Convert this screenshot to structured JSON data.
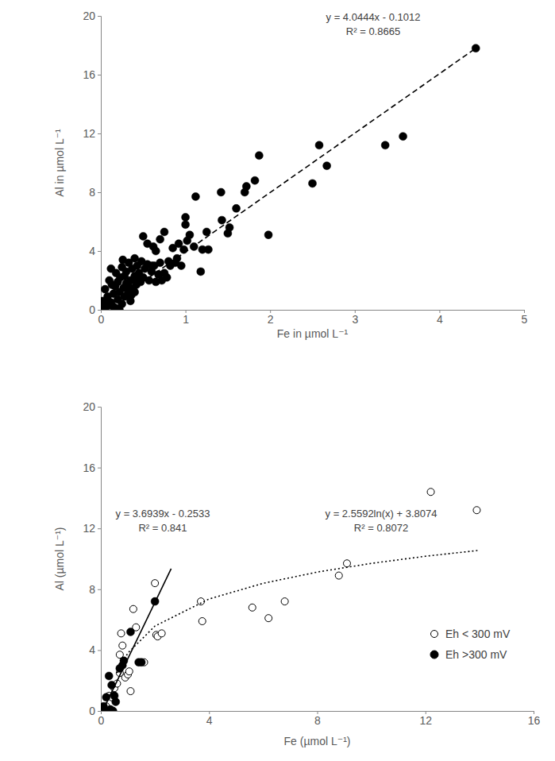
{
  "chart_data": [
    {
      "type": "scatter",
      "x_label": "Fe in µmol L⁻¹",
      "y_label": "Al in µmol L⁻¹",
      "xlim": [
        0,
        5
      ],
      "xticks": [
        0,
        1,
        2,
        3,
        4,
        5
      ],
      "ylim": [
        0,
        20
      ],
      "yticks": [
        0,
        4,
        8,
        12,
        16,
        20
      ],
      "grid": false,
      "annotations": [
        "y = 4.0444x - 0.1012",
        "R² = 0.8665"
      ],
      "series": [
        {
          "color": "#000000",
          "marker": "circle",
          "x": [
            0.02,
            0.03,
            0.05,
            0.05,
            0.08,
            0.1,
            0.1,
            0.12,
            0.12,
            0.15,
            0.15,
            0.17,
            0.18,
            0.2,
            0.2,
            0.22,
            0.23,
            0.25,
            0.25,
            0.27,
            0.28,
            0.3,
            0.3,
            0.32,
            0.33,
            0.35,
            0.35,
            0.37,
            0.38,
            0.4,
            0.4,
            0.42,
            0.43,
            0.45,
            0.47,
            0.48,
            0.5,
            0.52,
            0.55,
            0.57,
            0.6,
            0.63,
            0.65,
            0.68,
            0.7,
            0.72,
            0.75,
            0.78,
            0.82,
            0.88,
            0.18,
            0.22,
            0.28,
            0.13,
            0.07,
            0.26,
            0.36,
            0.44,
            0.33,
            0.4,
            0.5,
            0.55,
            0.6,
            0.62,
            0.65,
            0.7,
            0.75,
            0.8,
            0.85,
            0.9,
            0.92,
            0.95,
            0.98,
            1.0,
            1.0,
            1.02,
            1.05,
            1.1,
            1.12,
            1.18,
            1.2,
            1.25,
            1.27,
            1.42,
            1.43,
            1.5,
            1.52,
            1.6,
            1.7,
            1.72,
            1.82,
            1.87,
            1.98,
            2.5,
            2.58,
            2.67,
            3.36,
            3.57,
            4.43
          ],
          "values": [
            0.6,
            0.2,
            1.4,
            0.0,
            0.9,
            0.3,
            2.0,
            0.5,
            2.8,
            1.1,
            0.2,
            1.6,
            2.5,
            0.7,
            1.9,
            1.2,
            2.2,
            0.4,
            2.9,
            1.5,
            0.9,
            1.8,
            2.6,
            1.1,
            3.2,
            2.0,
            0.6,
            2.8,
            1.4,
            3.5,
            2.3,
            1.7,
            3.0,
            2.5,
            1.9,
            3.3,
            2.2,
            2.8,
            3.1,
            2.0,
            2.6,
            3.0,
            1.9,
            2.4,
            3.2,
            2.0,
            2.5,
            2.2,
            3.0,
            3.2,
            0.1,
            0.0,
            2.3,
            1.7,
            0.4,
            3.4,
            1.0,
            2.0,
            1.6,
            1.2,
            5.0,
            4.5,
            3.0,
            4.3,
            4.0,
            4.8,
            5.3,
            3.3,
            4.2,
            3.5,
            4.5,
            3.0,
            4.1,
            5.8,
            6.3,
            4.7,
            5.1,
            4.3,
            7.7,
            2.6,
            4.1,
            5.3,
            4.1,
            8.0,
            6.1,
            5.2,
            5.6,
            6.9,
            8.0,
            8.4,
            8.8,
            10.5,
            5.1,
            8.6,
            11.2,
            9.8,
            11.2,
            11.8,
            17.8
          ]
        },
        {
          "type": "line",
          "color": "#000000",
          "line_style": "dashed",
          "x": [
            0.05,
            4.43
          ],
          "values": [
            0.1,
            17.8
          ]
        }
      ]
    },
    {
      "type": "scatter",
      "x_label": "Fe (µmol L⁻¹)",
      "y_label": "Al (µmol L⁻¹)",
      "xlim": [
        0,
        16
      ],
      "xticks": [
        0,
        4,
        8,
        12,
        16
      ],
      "ylim": [
        0,
        20
      ],
      "yticks": [
        0,
        4,
        8,
        12,
        16,
        20
      ],
      "grid": false,
      "legend": "lower right",
      "annotations": [
        "y = 3.6939x - 0.2533",
        "R² = 0.841",
        "y = 2.5592ln(x) + 3.8074",
        "R² = 0.8072"
      ],
      "series": [
        {
          "name": "Eh < 300 mV",
          "color": "#000000",
          "marker": "open_circle",
          "x": [
            0.2,
            0.3,
            0.4,
            0.5,
            0.6,
            0.7,
            0.7,
            0.75,
            0.8,
            0.9,
            1.0,
            1.05,
            1.1,
            1.2,
            1.3,
            1.6,
            2.0,
            2.05,
            2.1,
            2.25,
            3.7,
            3.75,
            5.6,
            6.2,
            6.8,
            8.8,
            9.1,
            12.2,
            13.9
          ],
          "values": [
            0.3,
            1.0,
            0.9,
            1.5,
            1.8,
            2.5,
            3.7,
            5.1,
            4.3,
            2.2,
            2.4,
            2.6,
            1.3,
            6.7,
            5.5,
            3.2,
            8.4,
            5.0,
            4.9,
            5.1,
            7.2,
            5.9,
            6.8,
            6.1,
            7.2,
            8.9,
            9.7,
            14.4,
            13.2
          ]
        },
        {
          "name": "Eh >300 mV",
          "color": "#000000",
          "marker": "circle",
          "x": [
            0.1,
            0.15,
            0.2,
            0.3,
            0.35,
            0.4,
            0.45,
            0.5,
            0.55,
            0.7,
            0.8,
            0.85,
            1.1,
            1.4,
            1.5,
            2.0
          ],
          "values": [
            0.3,
            0.0,
            0.9,
            2.3,
            0.1,
            1.7,
            0.0,
            1.0,
            0.6,
            2.8,
            3.0,
            3.3,
            5.2,
            3.2,
            3.2,
            7.2
          ]
        },
        {
          "type": "line",
          "color": "#000000",
          "line_style": "solid",
          "x": [
            0.1,
            2.6
          ],
          "values": [
            0.12,
            9.35
          ]
        },
        {
          "type": "line",
          "color": "#000000",
          "line_style": "dotted",
          "x": [
            0.6,
            1,
            2,
            4,
            6,
            8,
            10,
            12,
            14
          ],
          "values": [
            2.5,
            3.81,
            5.58,
            7.36,
            8.39,
            9.13,
            9.7,
            10.17,
            10.56
          ]
        }
      ]
    }
  ]
}
